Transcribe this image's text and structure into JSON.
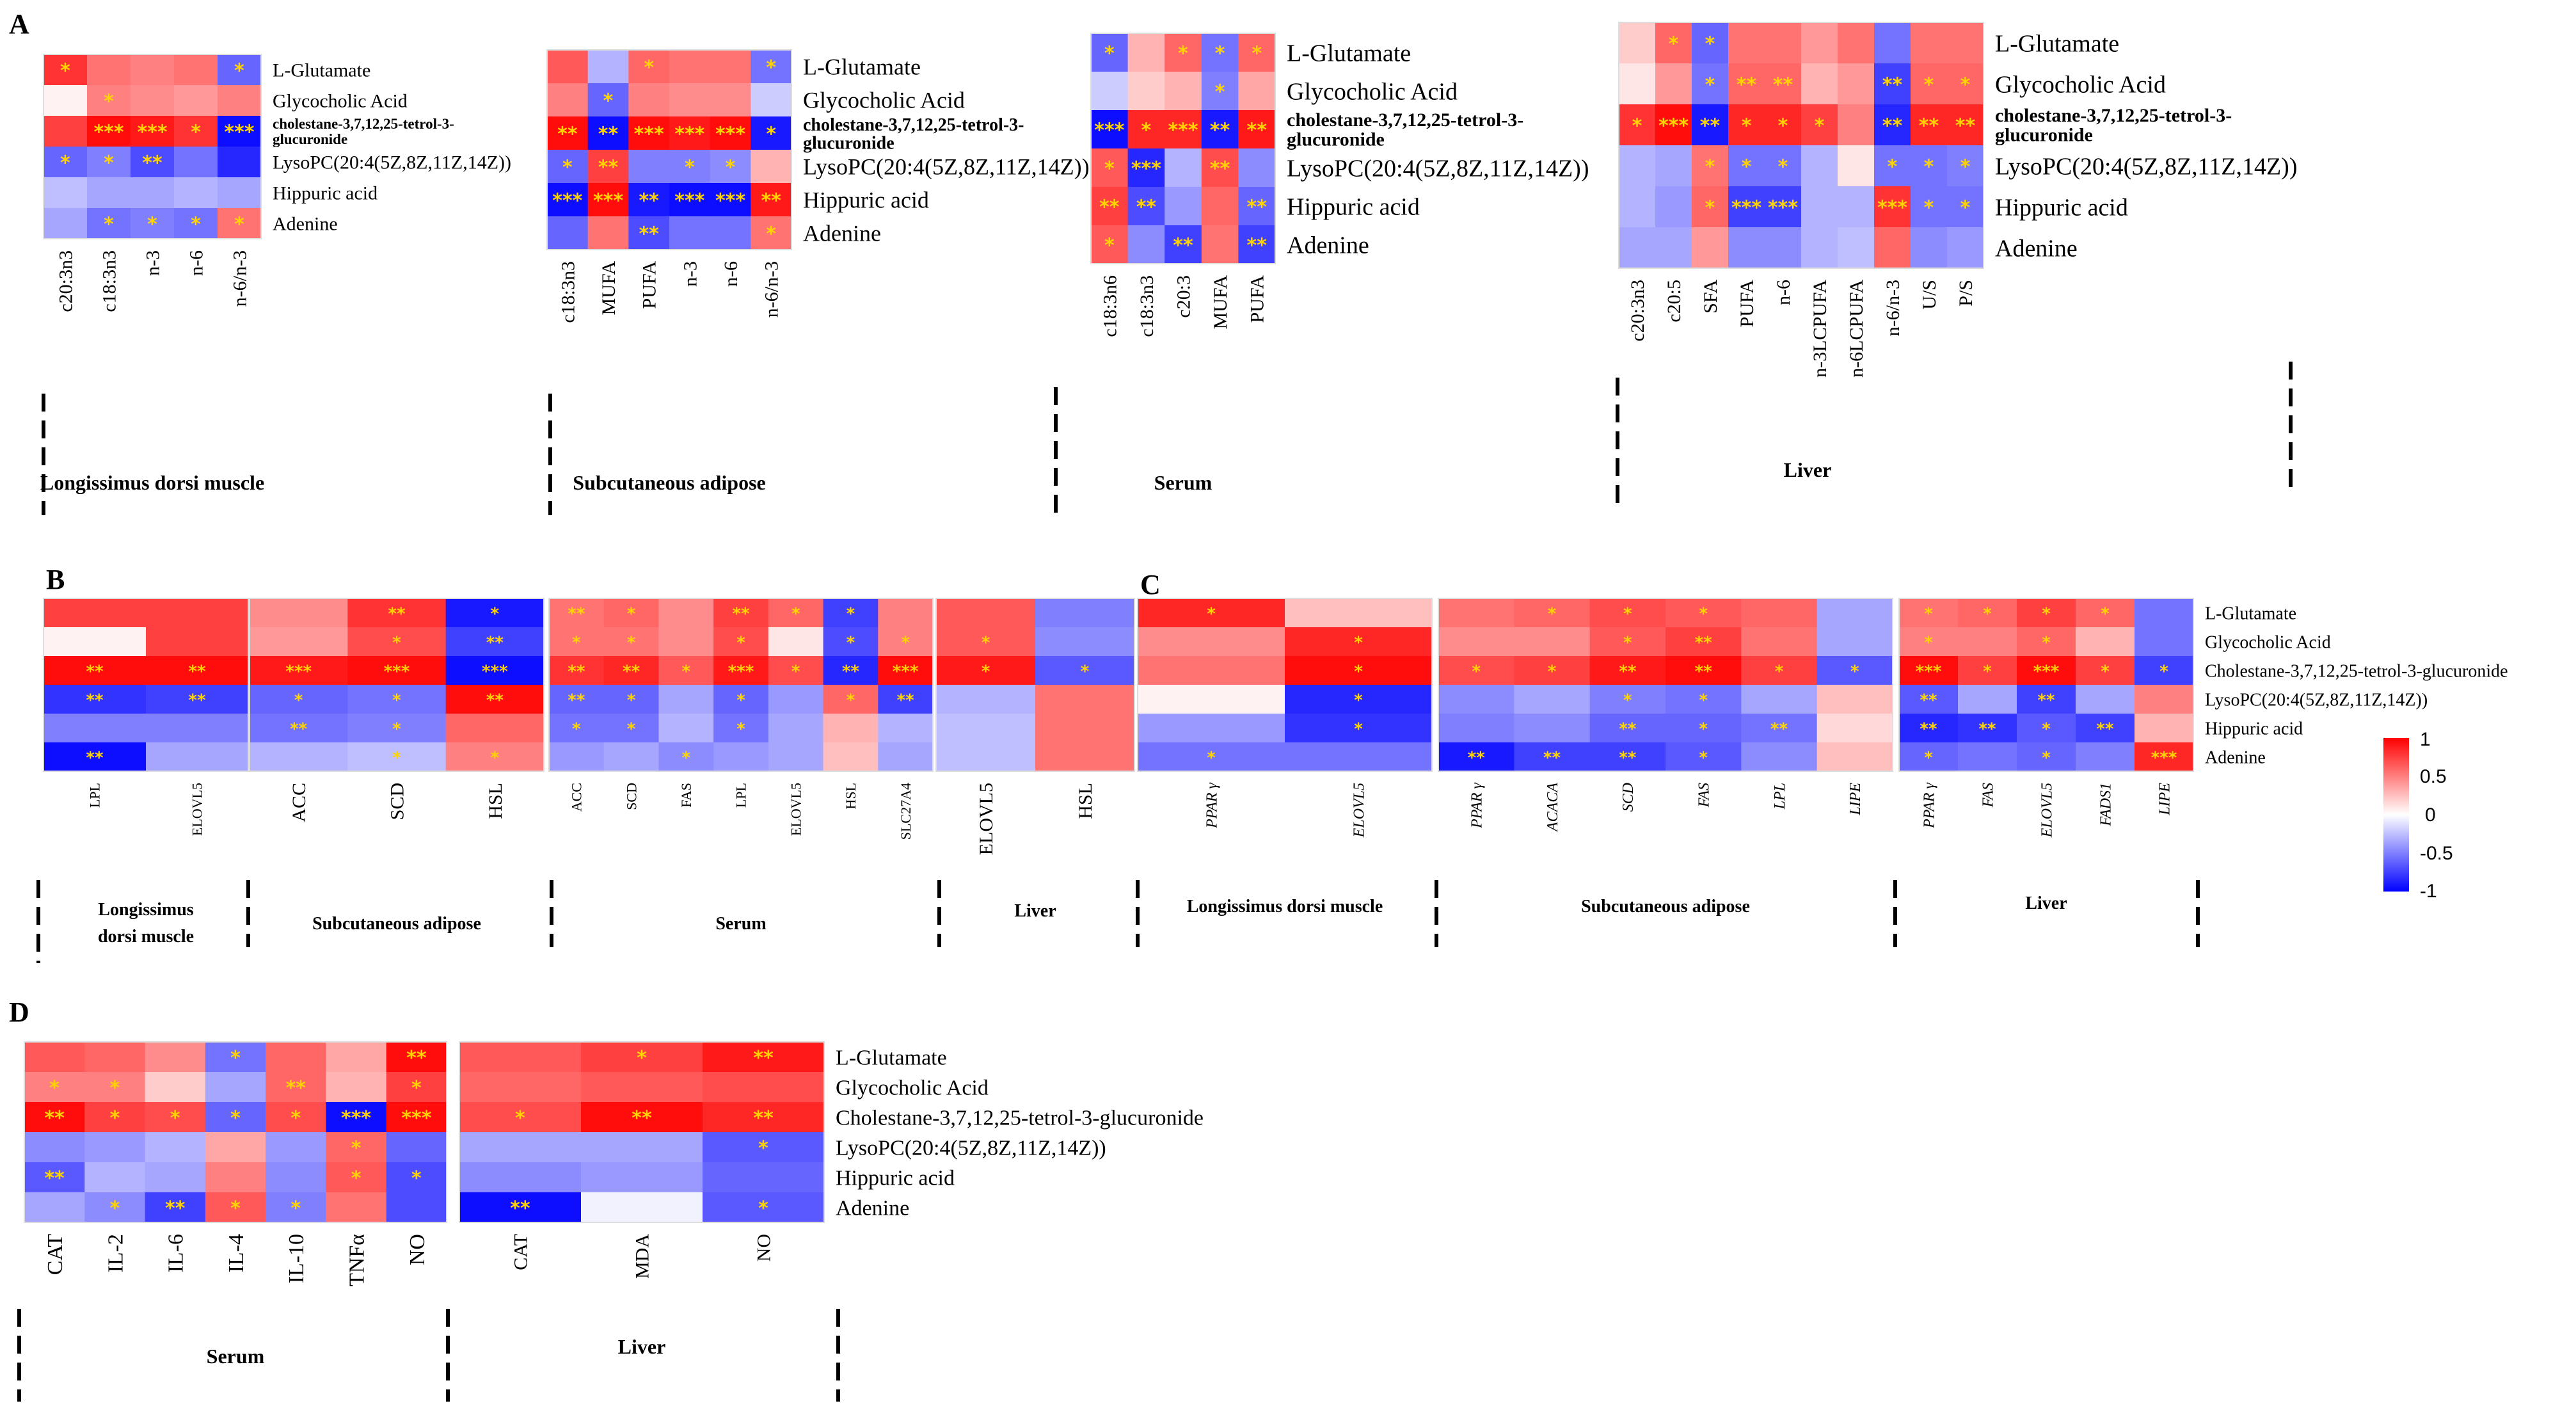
{
  "colors": {
    "neg": "#0000ff",
    "zero": "#ffffff",
    "pos": "#ff0000",
    "star": "#ffd400",
    "dashes": "#000000"
  },
  "rows_short": [
    "L-Glutamate",
    "Glycocholic Acid",
    "cholestane-3,7,12,25-tetrol-3-glucuronide",
    "LysoPC(20:4(5Z,8Z,11Z,14Z))",
    "Hippuric acid",
    "Adenine"
  ],
  "rows_long": [
    "L-Glutamate",
    "Glycocholic Acid",
    "Cholestane-3,7,12,25-tetrol-3-glucuronide",
    "LysoPC(20:4(5Z,8Z,11Z,14Z))",
    "Hippuric acid",
    "Adenine"
  ],
  "chart_data": [
    {
      "panel": "A",
      "tissue": "Longissimus dorsi muscle",
      "type": "heatmap",
      "x": [
        "c20:3n3",
        "c18:3n3",
        "n-3",
        "n-6",
        "n-6/n-3"
      ],
      "values": [
        [
          0.8,
          0.55,
          0.5,
          0.55,
          -0.6
        ],
        [
          0.05,
          0.5,
          0.45,
          0.4,
          0.5
        ],
        [
          0.75,
          0.95,
          0.9,
          0.8,
          -0.95
        ],
        [
          -0.6,
          -0.5,
          -0.7,
          -0.55,
          -0.85
        ],
        [
          -0.25,
          -0.35,
          -0.35,
          -0.3,
          -0.35
        ],
        [
          -0.35,
          -0.55,
          -0.5,
          -0.55,
          0.55
        ]
      ],
      "stars": [
        [
          "*",
          "",
          "",
          "",
          "*"
        ],
        [
          "",
          "*",
          "",
          "",
          ""
        ],
        [
          "",
          "***",
          "***",
          "*",
          "***"
        ],
        [
          "*",
          "*",
          "**",
          "",
          ""
        ],
        [
          "",
          "",
          "",
          "",
          ""
        ],
        [
          "",
          "*",
          "*",
          "*",
          "*"
        ]
      ]
    },
    {
      "panel": "A",
      "tissue": "Subcutaneous adipose",
      "type": "heatmap",
      "x": [
        "c18:3n3",
        "MUFA",
        "PUFA",
        "n-3",
        "n-6",
        "n-6/n-3"
      ],
      "values": [
        [
          0.65,
          -0.3,
          0.6,
          0.55,
          0.55,
          -0.55
        ],
        [
          0.5,
          -0.6,
          0.5,
          0.45,
          0.45,
          -0.2
        ],
        [
          0.95,
          -0.95,
          0.95,
          0.9,
          0.95,
          -0.9
        ],
        [
          -0.6,
          0.75,
          -0.5,
          -0.5,
          -0.45,
          0.3
        ],
        [
          -0.95,
          0.95,
          -0.9,
          -0.95,
          -0.95,
          0.9
        ],
        [
          -0.6,
          0.55,
          -0.7,
          -0.55,
          -0.55,
          0.55
        ]
      ],
      "stars": [
        [
          "",
          "",
          "*",
          "",
          "",
          "*"
        ],
        [
          "",
          "*",
          "",
          "",
          "",
          ""
        ],
        [
          "**",
          "**",
          "***",
          "***",
          "***",
          "*"
        ],
        [
          "*",
          "**",
          "",
          "*",
          "*",
          ""
        ],
        [
          "***",
          "***",
          "**",
          "***",
          "***",
          "**"
        ],
        [
          "",
          "",
          "**",
          "",
          "",
          "*"
        ]
      ]
    },
    {
      "panel": "A",
      "tissue": "Serum",
      "type": "heatmap",
      "x": [
        "c18:3n6",
        "c18:3n3",
        "c20:3",
        "MUFA",
        "PUFA"
      ],
      "values": [
        [
          -0.6,
          0.3,
          0.6,
          -0.55,
          0.6
        ],
        [
          -0.2,
          0.2,
          0.3,
          -0.5,
          0.35
        ],
        [
          -0.95,
          0.85,
          0.85,
          -0.9,
          0.9
        ],
        [
          0.65,
          -0.85,
          -0.3,
          0.7,
          -0.45
        ],
        [
          0.75,
          -0.7,
          -0.4,
          0.6,
          -0.6
        ],
        [
          0.65,
          -0.45,
          -0.75,
          0.55,
          -0.75
        ]
      ],
      "stars": [
        [
          "*",
          "",
          "*",
          "*",
          "*"
        ],
        [
          "",
          "",
          "",
          "*",
          ""
        ],
        [
          "***",
          "*",
          "***",
          "**",
          "**"
        ],
        [
          "*",
          "***",
          "",
          "**",
          ""
        ],
        [
          "**",
          "**",
          "",
          "",
          "**"
        ],
        [
          "*",
          "",
          "**",
          "",
          "**"
        ]
      ]
    },
    {
      "panel": "A",
      "tissue": "Liver",
      "type": "heatmap",
      "x": [
        "c20:3n3",
        "c20:5",
        "SFA",
        "PUFA",
        "n-6",
        "n-3LCPUFA",
        "n-6LCPUFA",
        "n-6/n-3",
        "U/S",
        "P/S"
      ],
      "values": [
        [
          0.2,
          0.6,
          -0.6,
          0.55,
          0.55,
          0.4,
          0.55,
          -0.55,
          0.55,
          0.55
        ],
        [
          0.1,
          0.4,
          -0.55,
          0.6,
          0.6,
          0.3,
          0.4,
          -0.75,
          0.6,
          0.6
        ],
        [
          0.8,
          0.95,
          -0.9,
          0.85,
          0.85,
          0.75,
          0.5,
          -0.85,
          0.85,
          0.85
        ],
        [
          -0.3,
          -0.35,
          0.55,
          -0.55,
          -0.55,
          -0.3,
          0.1,
          -0.55,
          -0.55,
          -0.5
        ],
        [
          -0.3,
          -0.4,
          0.6,
          -0.75,
          -0.75,
          -0.3,
          -0.3,
          0.8,
          -0.55,
          -0.55
        ],
        [
          -0.35,
          -0.35,
          0.4,
          -0.45,
          -0.45,
          -0.3,
          -0.25,
          0.6,
          -0.45,
          -0.4
        ]
      ],
      "stars": [
        [
          "",
          "*",
          "*",
          "",
          "",
          "",
          "",
          "",
          "",
          ""
        ],
        [
          "",
          "",
          "*",
          "**",
          "**",
          "",
          "",
          "**",
          "*",
          "*"
        ],
        [
          "*",
          "***",
          "**",
          "*",
          "*",
          "*",
          "",
          "**",
          "**",
          "**"
        ],
        [
          "",
          "",
          "*",
          "*",
          "*",
          "",
          "",
          "*",
          "*",
          "*"
        ],
        [
          "",
          "",
          "*",
          "***",
          "***",
          "",
          "",
          "***",
          "*",
          "*"
        ],
        [
          "",
          "",
          "",
          "",
          "",
          "",
          "",
          "",
          "",
          ""
        ]
      ]
    },
    {
      "panel": "B",
      "tissue": "Longissimus dorsi muscle",
      "type": "heatmap",
      "x": [
        "LPL",
        "ELOVL5"
      ],
      "values": [
        [
          0.75,
          0.75
        ],
        [
          0.05,
          0.75
        ],
        [
          0.95,
          0.95
        ],
        [
          -0.8,
          -0.75
        ],
        [
          -0.5,
          -0.5
        ],
        [
          -0.95,
          -0.35
        ]
      ],
      "stars": [
        [
          "",
          ""
        ],
        [
          "",
          ""
        ],
        [
          "**",
          "**"
        ],
        [
          "**",
          "**"
        ],
        [
          "",
          ""
        ],
        [
          "**",
          ""
        ]
      ]
    },
    {
      "panel": "B",
      "tissue": "Subcutaneous adipose",
      "type": "heatmap",
      "x": [
        "ACC",
        "SCD",
        "HSL"
      ],
      "values": [
        [
          0.45,
          0.8,
          -0.9
        ],
        [
          0.4,
          0.7,
          -0.75
        ],
        [
          0.9,
          0.95,
          -0.95
        ],
        [
          -0.6,
          -0.55,
          0.95
        ],
        [
          -0.55,
          -0.5,
          0.6
        ],
        [
          -0.3,
          -0.25,
          0.5
        ]
      ],
      "stars": [
        [
          "",
          "**",
          "*"
        ],
        [
          "",
          "*",
          "**"
        ],
        [
          "***",
          "***",
          "***"
        ],
        [
          "*",
          "*",
          "**"
        ],
        [
          "**",
          "*",
          ""
        ],
        [
          "",
          "*",
          "*"
        ]
      ]
    },
    {
      "panel": "B",
      "tissue": "Serum",
      "type": "heatmap",
      "x": [
        "ACC",
        "SCD",
        "FAS",
        "LPL",
        "ELOVL5",
        "HSL",
        "SLC27A4"
      ],
      "values": [
        [
          0.55,
          0.6,
          0.45,
          0.75,
          0.6,
          -0.75,
          0.5
        ],
        [
          0.55,
          0.55,
          0.45,
          0.7,
          0.1,
          -0.7,
          0.5
        ],
        [
          0.8,
          0.85,
          0.65,
          0.9,
          0.7,
          -0.85,
          0.95
        ],
        [
          -0.6,
          -0.6,
          -0.35,
          -0.6,
          -0.4,
          0.6,
          -0.75
        ],
        [
          -0.55,
          -0.55,
          -0.3,
          -0.55,
          -0.35,
          0.3,
          -0.3
        ],
        [
          -0.4,
          -0.35,
          -0.45,
          -0.4,
          -0.35,
          0.25,
          -0.35
        ]
      ],
      "stars": [
        [
          "**",
          "*",
          "",
          "**",
          "*",
          "*",
          ""
        ],
        [
          "*",
          "*",
          "",
          "*",
          "",
          "*",
          "*"
        ],
        [
          "**",
          "**",
          "*",
          "***",
          "*",
          "**",
          "***"
        ],
        [
          "**",
          "*",
          "",
          "*",
          "",
          "*",
          "**"
        ],
        [
          "*",
          "*",
          "",
          "*",
          "",
          "",
          ""
        ],
        [
          "",
          "",
          "*",
          "",
          "",
          "",
          ""
        ]
      ]
    },
    {
      "panel": "B",
      "tissue": "Liver",
      "type": "heatmap",
      "x": [
        "ELOVL5",
        "HSL"
      ],
      "values": [
        [
          0.65,
          -0.5
        ],
        [
          0.65,
          -0.45
        ],
        [
          0.9,
          -0.65
        ],
        [
          -0.3,
          0.55
        ],
        [
          -0.25,
          0.55
        ],
        [
          -0.25,
          0.55
        ]
      ],
      "stars": [
        [
          "",
          ""
        ],
        [
          "*",
          ""
        ],
        [
          "*",
          "*"
        ],
        [
          "",
          ""
        ],
        [
          "",
          ""
        ],
        [
          "",
          ""
        ]
      ]
    },
    {
      "panel": "C",
      "tissue": "Longissimus dorsi muscle",
      "type": "heatmap",
      "x": [
        "PPAR γ",
        "ELOVL5"
      ],
      "values": [
        [
          0.85,
          0.25
        ],
        [
          0.45,
          0.85
        ],
        [
          0.55,
          0.95
        ],
        [
          0.05,
          -0.85
        ],
        [
          -0.4,
          -0.8
        ],
        [
          -0.55,
          -0.55
        ]
      ],
      "stars": [
        [
          "*",
          ""
        ],
        [
          "",
          "*"
        ],
        [
          "",
          "*"
        ],
        [
          "",
          "*"
        ],
        [
          "",
          "*"
        ],
        [
          "*",
          ""
        ]
      ]
    },
    {
      "panel": "C",
      "tissue": "Subcutaneous adipose",
      "type": "heatmap",
      "x": [
        "PPAR γ",
        "ACACA",
        "SCD",
        "FAS",
        "LPL",
        "LIPE"
      ],
      "values": [
        [
          0.55,
          0.6,
          0.7,
          0.65,
          0.6,
          -0.35
        ],
        [
          0.45,
          0.45,
          0.65,
          0.75,
          0.55,
          -0.35
        ],
        [
          0.7,
          0.75,
          0.9,
          0.95,
          0.75,
          -0.65
        ],
        [
          -0.45,
          -0.35,
          -0.5,
          -0.55,
          -0.35,
          0.25
        ],
        [
          -0.5,
          -0.45,
          -0.6,
          -0.6,
          -0.55,
          0.15
        ],
        [
          -0.9,
          -0.75,
          -0.75,
          -0.65,
          -0.45,
          0.25
        ]
      ],
      "stars": [
        [
          "",
          "*",
          "*",
          "*",
          "",
          ""
        ],
        [
          "",
          "",
          "*",
          "**",
          "",
          ""
        ],
        [
          "*",
          "*",
          "**",
          "**",
          "*",
          "*"
        ],
        [
          "",
          "",
          "*",
          "*",
          "",
          ""
        ],
        [
          "",
          "",
          "**",
          "*",
          "**",
          ""
        ],
        [
          "**",
          "**",
          "**",
          "*",
          "",
          ""
        ]
      ]
    },
    {
      "panel": "C",
      "tissue": "Liver",
      "type": "heatmap",
      "x": [
        "PPAR γ",
        "FAS",
        "ELOVL5",
        "FADS1",
        "LIPE"
      ],
      "values": [
        [
          0.55,
          0.6,
          0.75,
          0.6,
          -0.55
        ],
        [
          0.5,
          0.5,
          0.6,
          0.3,
          -0.55
        ],
        [
          0.95,
          0.75,
          0.95,
          0.75,
          -0.75
        ],
        [
          -0.65,
          -0.35,
          -0.75,
          -0.35,
          0.5
        ],
        [
          -0.85,
          -0.8,
          -0.65,
          -0.75,
          0.3
        ],
        [
          -0.6,
          -0.55,
          -0.6,
          -0.5,
          0.85
        ]
      ],
      "stars": [
        [
          "*",
          "*",
          "*",
          "*",
          ""
        ],
        [
          "*",
          "",
          "*",
          "",
          ""
        ],
        [
          "***",
          "*",
          "***",
          "*",
          "*"
        ],
        [
          "**",
          "",
          "**",
          "",
          ""
        ],
        [
          "**",
          "**",
          "*",
          "**",
          ""
        ],
        [
          "*",
          "",
          "*",
          "",
          "***"
        ]
      ]
    },
    {
      "panel": "D",
      "tissue": "Serum",
      "type": "heatmap",
      "x": [
        "CAT",
        "IL-2",
        "IL-6",
        "IL-4",
        "IL-10",
        "TNFα",
        "NO"
      ],
      "values": [
        [
          0.65,
          0.6,
          0.45,
          -0.55,
          0.6,
          0.35,
          0.95
        ],
        [
          0.5,
          0.5,
          0.2,
          -0.35,
          0.6,
          0.3,
          0.75
        ],
        [
          0.95,
          0.75,
          0.7,
          -0.6,
          0.7,
          -0.95,
          0.95
        ],
        [
          -0.45,
          -0.4,
          -0.3,
          0.35,
          -0.4,
          0.6,
          -0.6
        ],
        [
          -0.65,
          -0.3,
          -0.35,
          0.5,
          -0.45,
          0.65,
          -0.7
        ],
        [
          -0.35,
          -0.45,
          -0.75,
          0.65,
          -0.5,
          0.55,
          -0.7
        ]
      ],
      "stars": [
        [
          "",
          "",
          "",
          "*",
          "",
          "",
          "**"
        ],
        [
          "*",
          "*",
          "",
          "",
          "**",
          "",
          "*"
        ],
        [
          "**",
          "*",
          "*",
          "*",
          "*",
          "***",
          "***"
        ],
        [
          "",
          "",
          "",
          "",
          "",
          "*",
          ""
        ],
        [
          "**",
          "",
          "",
          "",
          "",
          "*",
          "*"
        ],
        [
          "",
          "*",
          "**",
          "*",
          "*",
          "",
          ""
        ]
      ]
    },
    {
      "panel": "D",
      "tissue": "Liver",
      "type": "heatmap",
      "x": [
        "CAT",
        "MDA",
        "NO"
      ],
      "values": [
        [
          0.65,
          0.75,
          0.9
        ],
        [
          0.6,
          0.65,
          0.7
        ],
        [
          0.7,
          0.95,
          0.85
        ],
        [
          -0.35,
          -0.35,
          -0.65
        ],
        [
          -0.45,
          -0.4,
          -0.6
        ],
        [
          -0.95,
          -0.05,
          -0.65
        ]
      ],
      "stars": [
        [
          "",
          "*",
          "**"
        ],
        [
          "",
          "",
          ""
        ],
        [
          "*",
          "**",
          "**"
        ],
        [
          "",
          "",
          "*"
        ],
        [
          "",
          "",
          ""
        ],
        [
          "**",
          "",
          "*"
        ]
      ]
    }
  ],
  "panel_letters": [
    "A",
    "B",
    "C",
    "D"
  ],
  "legend": {
    "max_label": "1",
    "mid_high_label": "0.5",
    "zero_label": "0",
    "mid_low_label": "-0.5",
    "min_label": "-1"
  }
}
